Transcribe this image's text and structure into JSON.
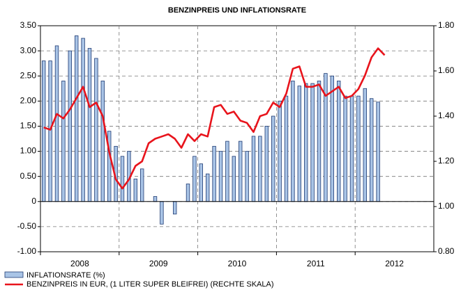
{
  "chart_data": {
    "type": "bar_line",
    "title": "BENZINPREIS UND INFLATIONSRATE",
    "years": [
      "2008",
      "2009",
      "2010",
      "2011",
      "2012"
    ],
    "ylim": [
      -1,
      3.5
    ],
    "yticks": [
      {
        "value": -1,
        "label": "-1.00"
      },
      {
        "value": -0.5,
        "label": "-0.50"
      },
      0,
      {
        "value": 0.5,
        "label": "0.50"
      },
      {
        "value": 1,
        "label": "1.00"
      },
      {
        "value": 1.5,
        "label": "1.50"
      },
      {
        "value": 2,
        "label": "2.00"
      },
      {
        "value": 2.5,
        "label": "2.50"
      },
      {
        "value": 3,
        "label": "3.00"
      },
      {
        "value": 3.5,
        "label": "3.50"
      }
    ],
    "y2lim": [
      0.8,
      1.8
    ],
    "y2ticks": [
      {
        "value": 0.8,
        "label": "0.80"
      },
      {
        "value": 1,
        "label": "1.00"
      },
      {
        "value": 1.2,
        "label": "1.20"
      },
      {
        "value": 1.4,
        "label": "1.40"
      },
      {
        "value": 1.6,
        "label": "1.60"
      },
      {
        "value": 1.8,
        "label": "1.80"
      }
    ],
    "grid": true,
    "series": [
      {
        "name": "INFLATIONSRATE (%)",
        "type": "bar",
        "color": "#a9c4e6",
        "values": [
          2.8,
          2.8,
          3.1,
          2.4,
          3.0,
          3.3,
          3.25,
          3.05,
          2.85,
          2.4,
          1.4,
          1.1,
          0.9,
          1.0,
          0.45,
          0.65,
          0.0,
          0.1,
          -0.45,
          0.0,
          -0.25,
          0.0,
          0.35,
          0.9,
          0.75,
          0.55,
          1.1,
          1.0,
          1.2,
          0.9,
          1.2,
          1.0,
          1.3,
          1.3,
          1.5,
          1.7,
          2.0,
          2.1,
          2.4,
          2.3,
          2.35,
          2.35,
          2.4,
          2.55,
          2.5,
          2.4,
          2.1,
          2.1,
          2.1,
          2.25,
          2.05,
          1.98,
          null,
          null
        ]
      },
      {
        "name": "BENZINPREIS IN EUR, (1 LITER SUPER BLEIFREI) (RECHTE SKALA)",
        "type": "line",
        "axis": "y2",
        "color": "#e8141c",
        "values": [
          1.35,
          1.34,
          1.41,
          1.39,
          1.43,
          1.48,
          1.53,
          1.44,
          1.46,
          1.4,
          1.24,
          1.12,
          1.08,
          1.12,
          1.18,
          1.2,
          1.28,
          1.3,
          1.31,
          1.32,
          1.3,
          1.26,
          1.32,
          1.29,
          1.32,
          1.31,
          1.44,
          1.45,
          1.41,
          1.42,
          1.38,
          1.37,
          1.33,
          1.4,
          1.41,
          1.46,
          1.44,
          1.5,
          1.61,
          1.62,
          1.53,
          1.53,
          1.54,
          1.49,
          1.51,
          1.53,
          1.48,
          1.49,
          1.52,
          1.58,
          1.66,
          1.7,
          1.67,
          null
        ]
      }
    ]
  }
}
